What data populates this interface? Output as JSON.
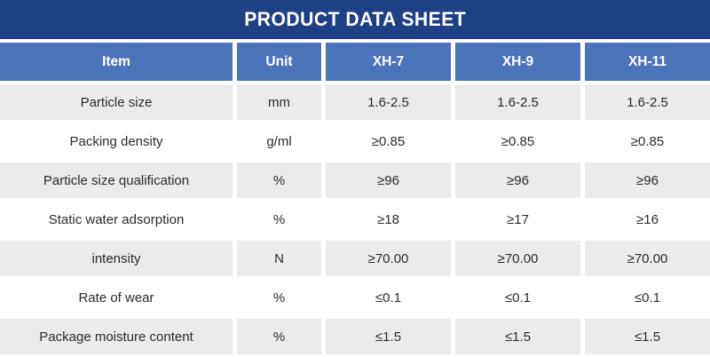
{
  "title": "PRODUCT DATA SHEET",
  "table": {
    "headers": [
      "Item",
      "Unit",
      "XH-7",
      "XH-9",
      "XH-11"
    ],
    "rows": [
      {
        "item": "Particle size",
        "values": [
          "mm",
          "1.6-2.5",
          "1.6-2.5",
          "1.6-2.5"
        ]
      },
      {
        "item": "Packing density",
        "values": [
          "g/ml",
          "≥0.85",
          "≥0.85",
          "≥0.85"
        ]
      },
      {
        "item": "Particle size qualification",
        "values": [
          "%",
          "≥96",
          "≥96",
          "≥96"
        ]
      },
      {
        "item": "Static water adsorption",
        "values": [
          "%",
          "≥18",
          "≥17",
          "≥16"
        ]
      },
      {
        "item": "intensity",
        "values": [
          "N",
          "≥70.00",
          "≥70.00",
          "≥70.00"
        ]
      },
      {
        "item": "Rate of wear",
        "values": [
          "%",
          "≤0.1",
          "≤0.1",
          "≤0.1"
        ]
      },
      {
        "item": "Package moisture content",
        "values": [
          "%",
          "≤1.5",
          "≤1.5",
          "≤1.5"
        ]
      }
    ]
  },
  "colors": {
    "title_bar_bg": "#1d4086",
    "header_bg": "#4c74ba",
    "row_alt_bg": "#ebebeb",
    "row_bg": "#ffffff",
    "header_text": "#ffffff",
    "body_text": "#2b2b2b"
  }
}
